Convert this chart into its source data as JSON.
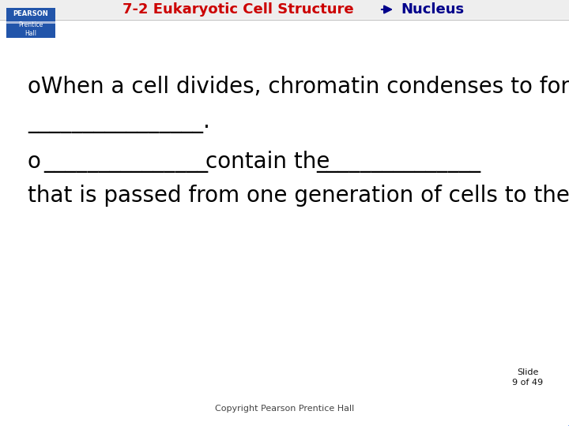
{
  "title_part1": "7-2 Eukaryotic Cell Structure",
  "title_part2": "Nucleus",
  "title_color1": "#cc0000",
  "title_color2": "#00008b",
  "line1": "oWhen a cell divides, chromatin condenses to form",
  "line2_blank": "________________.",
  "line3_prefix": "o",
  "line3_blank1": "_______________",
  "line3_mid": "contain the",
  "line3_blank2": "_______________",
  "line4": "that is passed from one generation of cells to the next.",
  "footer": "Copyright Pearson Prentice Hall",
  "slide_line1": "Slide",
  "slide_line2": "9 of 49",
  "bg_color": "#ffffff",
  "text_color": "#000000",
  "font_size_body": 20,
  "font_size_title": 13,
  "font_size_footer": 8,
  "font_size_slide": 8
}
